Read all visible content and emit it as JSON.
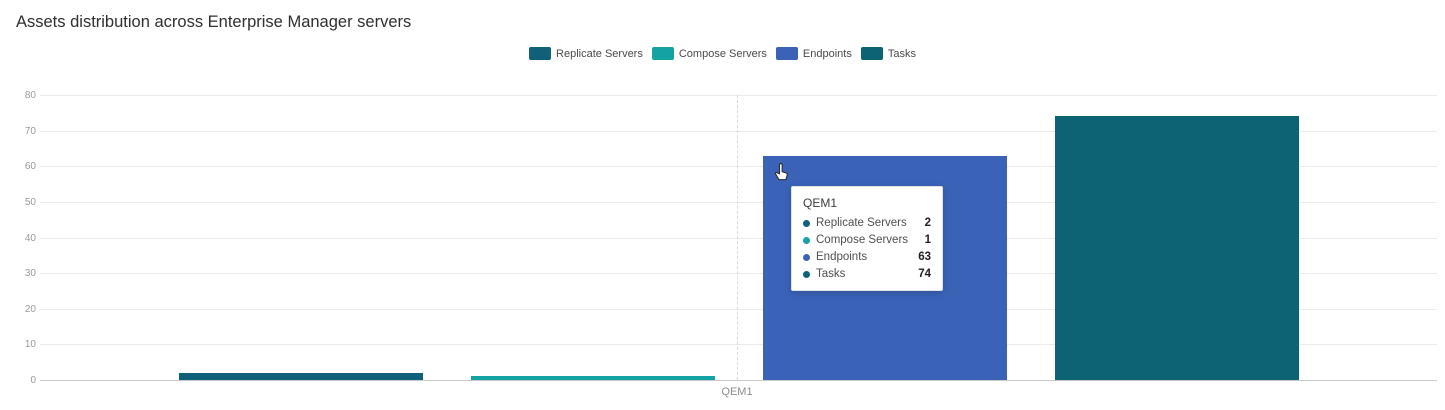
{
  "title": "Assets distribution across Enterprise Manager servers",
  "chart_data": {
    "type": "bar",
    "categories": [
      "QEM1"
    ],
    "series": [
      {
        "name": "Replicate Servers",
        "values": [
          2
        ],
        "color": "#0f6078"
      },
      {
        "name": "Compose Servers",
        "values": [
          1
        ],
        "color": "#15a2a2"
      },
      {
        "name": "Endpoints",
        "values": [
          63
        ],
        "color": "#3a63b8"
      },
      {
        "name": "Tasks",
        "values": [
          74
        ],
        "color": "#0d6373"
      }
    ],
    "ylim": [
      0,
      80
    ],
    "yticks": [
      0,
      10,
      20,
      30,
      40,
      50,
      60,
      70,
      80
    ],
    "xlabel": "",
    "ylabel": "",
    "grid": true,
    "legend_position": "top-center"
  },
  "tooltip": {
    "title": "QEM1",
    "rows": [
      {
        "label": "Replicate Servers",
        "value": "2",
        "color": "#0f6078"
      },
      {
        "label": "Compose Servers",
        "value": "1",
        "color": "#15a2a2"
      },
      {
        "label": "Endpoints",
        "value": "63",
        "color": "#3a63b8"
      },
      {
        "label": "Tasks",
        "value": "74",
        "color": "#0d6373"
      }
    ]
  }
}
